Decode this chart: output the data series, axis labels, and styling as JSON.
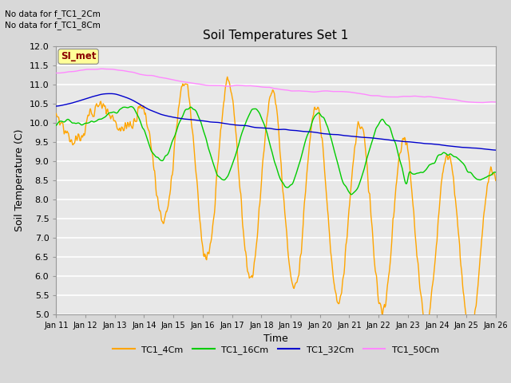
{
  "title": "Soil Temperatures Set 1",
  "xlabel": "Time",
  "ylabel": "Soil Temperature (C)",
  "ylim": [
    5.0,
    12.0
  ],
  "yticks": [
    5.0,
    5.5,
    6.0,
    6.5,
    7.0,
    7.5,
    8.0,
    8.5,
    9.0,
    9.5,
    10.0,
    10.5,
    11.0,
    11.5,
    12.0
  ],
  "colors": {
    "TC1_4Cm": "#FFA500",
    "TC1_16Cm": "#00CC00",
    "TC1_32Cm": "#0000CC",
    "TC1_50Cm": "#FF88FF"
  },
  "no_data_lines": [
    "No data for f_TC1_2Cm",
    "No data for f_TC1_8Cm"
  ],
  "SI_met_label": "SI_met",
  "bg_color": "#D8D8D8",
  "plot_bg_color": "#E8E8E8",
  "xticklabels": [
    "Jan 11",
    "Jan 12",
    "Jan 13",
    "Jan 14",
    "Jan 15",
    "Jan 16",
    "Jan 17",
    "Jan 18",
    "Jan 19",
    "Jan 20",
    "Jan 21",
    "Jan 22",
    "Jan 23",
    "Jan 24",
    "Jan 25",
    "Jan 26"
  ],
  "n_points": 720,
  "legend_entries": [
    "TC1_4Cm",
    "TC1_16Cm",
    "TC1_32Cm",
    "TC1_50Cm"
  ]
}
